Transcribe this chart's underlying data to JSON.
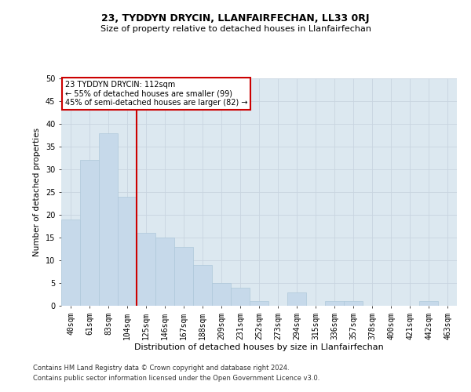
{
  "title": "23, TYDDYN DRYCIN, LLANFAIRFECHAN, LL33 0RJ",
  "subtitle": "Size of property relative to detached houses in Llanfairfechan",
  "xlabel": "Distribution of detached houses by size in Llanfairfechan",
  "ylabel": "Number of detached properties",
  "categories": [
    "40sqm",
    "61sqm",
    "83sqm",
    "104sqm",
    "125sqm",
    "146sqm",
    "167sqm",
    "188sqm",
    "209sqm",
    "231sqm",
    "252sqm",
    "273sqm",
    "294sqm",
    "315sqm",
    "336sqm",
    "357sqm",
    "378sqm",
    "400sqm",
    "421sqm",
    "442sqm",
    "463sqm"
  ],
  "values": [
    19,
    32,
    38,
    24,
    16,
    15,
    13,
    9,
    5,
    4,
    1,
    0,
    3,
    0,
    1,
    1,
    0,
    0,
    0,
    1,
    0
  ],
  "bar_color": "#c6d9ea",
  "bar_edge_color": "#aec8da",
  "vline_color": "#cc0000",
  "vline_x_index": 3,
  "annotation_title": "23 TYDDYN DRYCIN: 112sqm",
  "annotation_line1": "← 55% of detached houses are smaller (99)",
  "annotation_line2": "45% of semi-detached houses are larger (82) →",
  "annotation_box_facecolor": "#ffffff",
  "annotation_box_edgecolor": "#cc0000",
  "ylim": [
    0,
    50
  ],
  "yticks": [
    0,
    5,
    10,
    15,
    20,
    25,
    30,
    35,
    40,
    45,
    50
  ],
  "grid_color": "#c8d4e0",
  "background_color": "#dce8f0",
  "title_fontsize": 9,
  "subtitle_fontsize": 8,
  "xlabel_fontsize": 8,
  "ylabel_fontsize": 7.5,
  "tick_fontsize": 7,
  "footnote1": "Contains HM Land Registry data © Crown copyright and database right 2024.",
  "footnote2": "Contains public sector information licensed under the Open Government Licence v3.0.",
  "footnote_fontsize": 6
}
